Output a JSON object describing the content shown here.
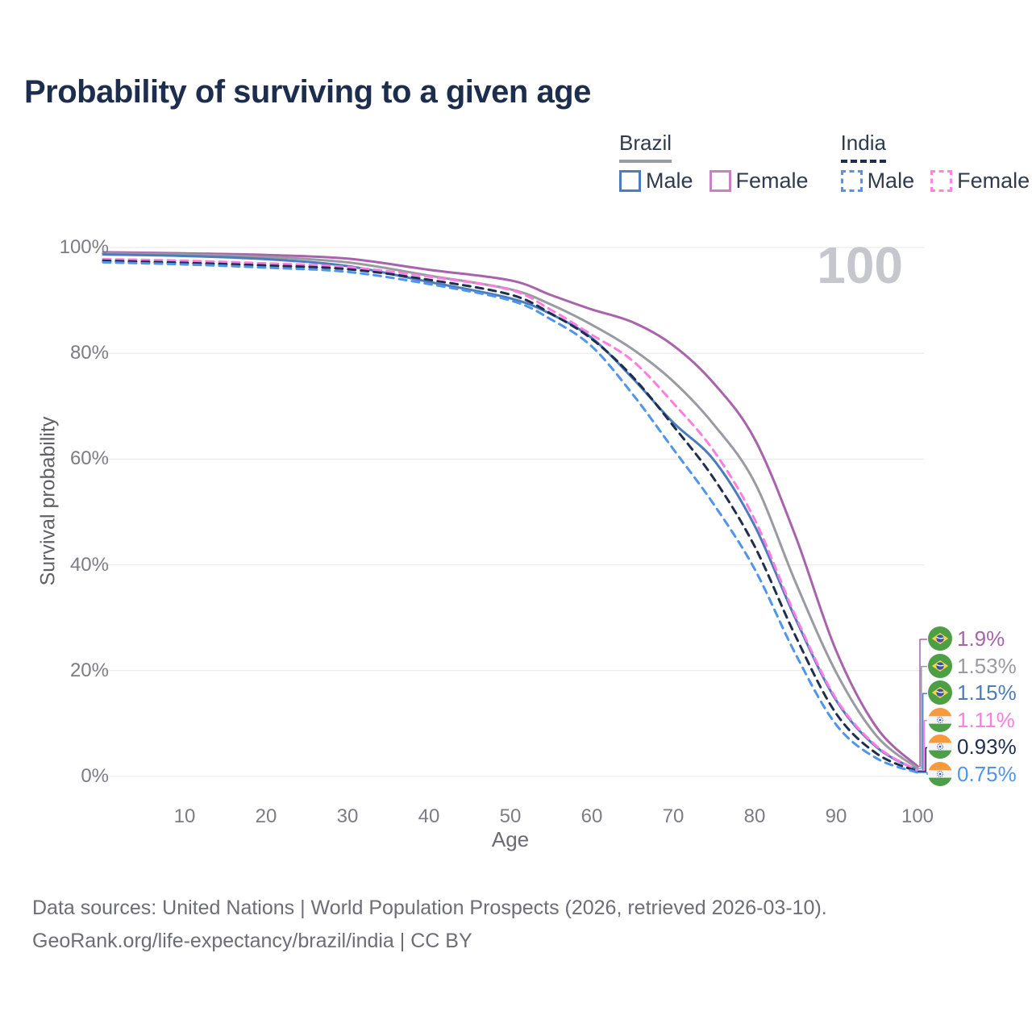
{
  "page": {
    "title": "Probability of surviving to a given age",
    "watermark_age": "100",
    "footer_line1": "Data sources: United Nations | World Population Prospects (2026, retrieved 2026-03-10).",
    "footer_line2": "GeoRank.org/life-expectancy/brazil/india | CC BY"
  },
  "legend": {
    "groups": [
      {
        "title": "Brazil",
        "line_style": "solid",
        "underline_color": "#9a9aa2",
        "items": [
          {
            "label": "Male",
            "color": "#4c7cbb"
          },
          {
            "label": "Female",
            "color": "#c583c5"
          }
        ]
      },
      {
        "title": "India",
        "line_style": "dashed",
        "underline_color": "#1f2d4e",
        "items": [
          {
            "label": "Male",
            "color": "#4f95ec"
          },
          {
            "label": "Female",
            "color": "#ff85e4"
          }
        ]
      }
    ]
  },
  "chart_data": {
    "type": "line",
    "title": "Probability of surviving to a given age",
    "xlabel": "Age",
    "ylabel": "Survival probability",
    "xlim": [
      0,
      100
    ],
    "ylim": [
      0,
      100
    ],
    "grid": "horizontal",
    "legend_position": "top-right",
    "x_ticks": [
      10,
      20,
      30,
      40,
      50,
      60,
      70,
      80,
      90,
      100
    ],
    "y_ticks": [
      {
        "label": "0%",
        "value": 0
      },
      {
        "label": "20%",
        "value": 20
      },
      {
        "label": "40%",
        "value": 40
      },
      {
        "label": "60%",
        "value": 60
      },
      {
        "label": "80%",
        "value": 80
      },
      {
        "label": "100%",
        "value": 100
      }
    ],
    "ages": [
      0,
      10,
      20,
      30,
      40,
      50,
      55,
      60,
      65,
      70,
      75,
      80,
      85,
      90,
      95,
      100
    ],
    "series": [
      {
        "name": "Brazil Female",
        "country": "Brazil",
        "sex": "Female",
        "flag": "brazil",
        "color": "#a763ab",
        "line_style": "solid",
        "end_label": "1.9%",
        "values": [
          99.1,
          98.9,
          98.6,
          97.9,
          95.8,
          93.8,
          91.0,
          88.3,
          85.9,
          81.5,
          74.3,
          63.8,
          45.5,
          23.8,
          9.2,
          1.9
        ]
      },
      {
        "name": "Brazil Both sexes",
        "country": "Brazil",
        "sex": "Both",
        "flag": "brazil",
        "color": "#9a9aa2",
        "line_style": "solid",
        "end_label": "1.53%",
        "values": [
          98.9,
          98.7,
          98.2,
          97.2,
          94.7,
          92.1,
          89.2,
          85.4,
          80.8,
          74.7,
          66.5,
          55.6,
          36.8,
          19.7,
          7.6,
          1.53
        ]
      },
      {
        "name": "Brazil Male",
        "country": "Brazil",
        "sex": "Male",
        "flag": "brazil",
        "color": "#4c7cbb",
        "line_style": "solid",
        "end_label": "1.15%",
        "values": [
          98.7,
          98.4,
          97.8,
          96.5,
          93.5,
          90.4,
          87.4,
          82.9,
          75.3,
          66.9,
          59.8,
          47.4,
          29.9,
          14.4,
          5.5,
          1.15
        ]
      },
      {
        "name": "India Female",
        "country": "India",
        "sex": "Female",
        "flag": "india",
        "color": "#ff7ce1",
        "line_style": "dashed",
        "end_label": "1.11%",
        "values": [
          97.8,
          97.5,
          97.0,
          96.3,
          94.5,
          92.0,
          88.2,
          83.5,
          78.6,
          70.6,
          61.5,
          48.6,
          30.4,
          14.7,
          5.7,
          1.11
        ]
      },
      {
        "name": "India Both sexes",
        "country": "India",
        "sex": "Both",
        "flag": "india",
        "color": "#1f2d4e",
        "line_style": "dashed",
        "end_label": "0.93%",
        "values": [
          97.5,
          97.1,
          96.6,
          95.9,
          93.9,
          91.1,
          87.5,
          82.7,
          75.6,
          66.3,
          56.3,
          43.5,
          26.6,
          11.9,
          4.3,
          0.93
        ]
      },
      {
        "name": "India Male",
        "country": "India",
        "sex": "Male",
        "flag": "india",
        "color": "#4f95ec",
        "line_style": "dashed",
        "end_label": "0.75%",
        "values": [
          97.2,
          96.8,
          96.2,
          95.4,
          93.1,
          90.0,
          86.4,
          81.3,
          72.3,
          61.9,
          51.4,
          39.2,
          23.2,
          9.8,
          3.4,
          0.75
        ]
      }
    ]
  }
}
